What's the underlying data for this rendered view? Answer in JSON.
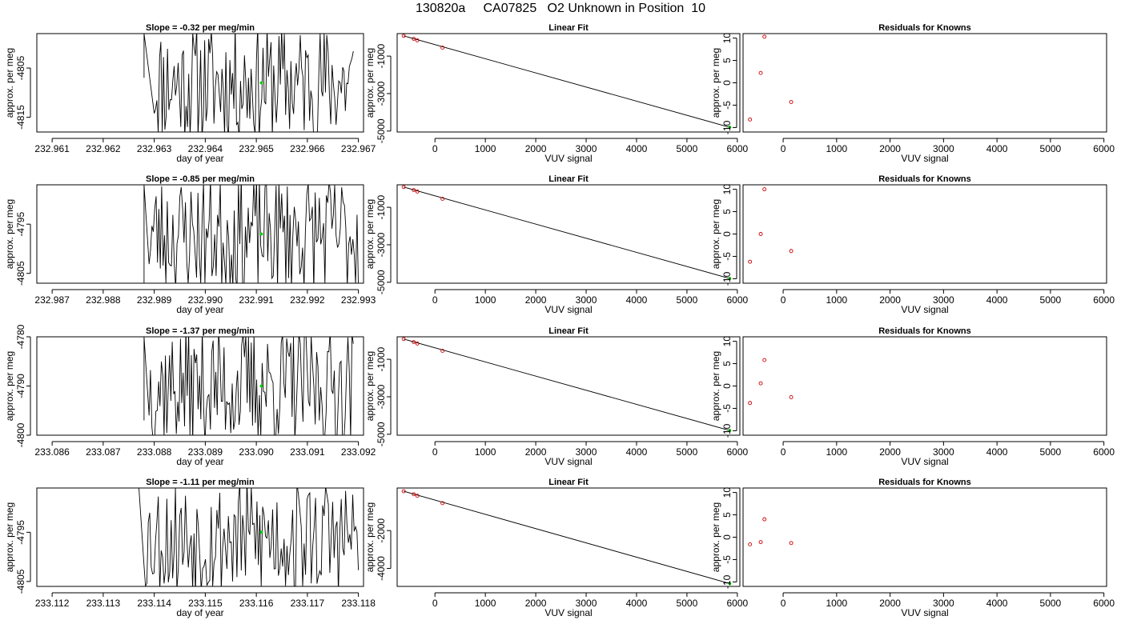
{
  "figure": {
    "title": "130820a     CA07825   O2 Unknown in Position  10",
    "colors": {
      "trace": "#000000",
      "unknown_point": "#00cc00",
      "known_point": "#cc0000",
      "fit_line": "#000000"
    }
  },
  "chart_data": [
    {
      "type": "line",
      "title": "Slope =  -0.32  per meg/min",
      "xlabel": "day of year",
      "ylabel": "approx. per meg",
      "xlim": [
        232.9607,
        232.9671
      ],
      "ylim": [
        -4818,
        -4798
      ],
      "xticks": [
        232.961,
        232.962,
        232.963,
        232.964,
        232.965,
        232.966,
        232.967
      ],
      "xtick_labels": [
        "232.961",
        "232.962",
        "232.963",
        "232.964",
        "232.965",
        "232.966",
        "232.967"
      ],
      "yticks": [
        -4805,
        -4815
      ],
      "ytick_labels": [
        "-4805",
        "-4815"
      ],
      "trace": {
        "x_start": 232.9628,
        "x_end": 232.9669,
        "x_entry": 232.963,
        "n": 150,
        "entry_y": -4807,
        "y_lo": -4818,
        "y_hi": -4798,
        "seed": 11
      },
      "unknown_point": {
        "x": 232.9651,
        "y": -4808
      }
    },
    {
      "type": "scatter",
      "title": "Linear Fit",
      "xlabel": "VUV signal",
      "ylabel": "approx. per meg",
      "xlim": [
        -750,
        6050
      ],
      "ylim": [
        -5050,
        200
      ],
      "xticks": [
        0,
        1000,
        2000,
        3000,
        4000,
        5000,
        6000
      ],
      "xtick_labels": [
        "0",
        "1000",
        "2000",
        "3000",
        "4000",
        "5000",
        "6000"
      ],
      "yticks": [
        -1000,
        -3000,
        -5000
      ],
      "ytick_labels": [
        "-1000",
        "-3000",
        "-5000"
      ],
      "known_points": [
        {
          "x": -620,
          "y": 80
        },
        {
          "x": -420,
          "y": -80
        },
        {
          "x": -350,
          "y": -160
        },
        {
          "x": 150,
          "y": -550
        }
      ],
      "fit_line": [
        {
          "x": -620,
          "y": 80
        },
        {
          "x": 5850,
          "y": -4800
        }
      ],
      "unknown_point": {
        "x": 5850,
        "y": -4800
      }
    },
    {
      "type": "scatter",
      "title": "Residuals for Knowns",
      "xlabel": "VUV signal",
      "ylabel": "approx. per meg",
      "xlim": [
        -750,
        6050
      ],
      "ylim": [
        -11,
        11
      ],
      "xticks": [
        0,
        1000,
        2000,
        3000,
        4000,
        5000,
        6000
      ],
      "xtick_labels": [
        "0",
        "1000",
        "2000",
        "3000",
        "4000",
        "5000",
        "6000"
      ],
      "yticks": [
        10,
        5,
        0,
        -5,
        -10
      ],
      "ytick_labels": [
        "10",
        "5",
        "0",
        "-5",
        "-10"
      ],
      "known_points": [
        {
          "x": -620,
          "y": -8.2
        },
        {
          "x": -420,
          "y": 2.2
        },
        {
          "x": -350,
          "y": 10.3
        },
        {
          "x": 150,
          "y": -4.3
        }
      ]
    },
    {
      "type": "line",
      "title": "Slope =  -0.85  per meg/min",
      "xlabel": "day of year",
      "ylabel": "approx. per meg",
      "xlim": [
        232.9867,
        232.9931
      ],
      "ylim": [
        -4807,
        -4787
      ],
      "xticks": [
        232.987,
        232.988,
        232.989,
        232.99,
        232.991,
        232.992,
        232.993
      ],
      "xtick_labels": [
        "232.987",
        "232.988",
        "232.989",
        "232.990",
        "232.991",
        "232.992",
        "232.993"
      ],
      "yticks": [
        -4795,
        -4805
      ],
      "ytick_labels": [
        "-4795",
        "-4805"
      ],
      "trace": {
        "x_start": 232.9888,
        "x_end": 232.993,
        "x_entry": 232.9889,
        "n": 150,
        "entry_y": -4807,
        "y_lo": -4807,
        "y_hi": -4787,
        "seed": 23
      },
      "unknown_point": {
        "x": 232.9911,
        "y": -4797
      }
    },
    {
      "type": "scatter",
      "title": "Linear Fit",
      "xlabel": "VUV signal",
      "ylabel": "approx. per meg",
      "xlim": [
        -750,
        6050
      ],
      "ylim": [
        -5050,
        200
      ],
      "xticks": [
        0,
        1000,
        2000,
        3000,
        4000,
        5000,
        6000
      ],
      "xtick_labels": [
        "0",
        "1000",
        "2000",
        "3000",
        "4000",
        "5000",
        "6000"
      ],
      "yticks": [
        -1000,
        -3000,
        -5000
      ],
      "ytick_labels": [
        "-1000",
        "-3000",
        "-5000"
      ],
      "known_points": [
        {
          "x": -620,
          "y": 80
        },
        {
          "x": -420,
          "y": -80
        },
        {
          "x": -350,
          "y": -160
        },
        {
          "x": 150,
          "y": -550
        }
      ],
      "fit_line": [
        {
          "x": -620,
          "y": 80
        },
        {
          "x": 5850,
          "y": -4800
        }
      ],
      "unknown_point": {
        "x": 5850,
        "y": -4800
      }
    },
    {
      "type": "scatter",
      "title": "Residuals for Knowns",
      "xlabel": "VUV signal",
      "ylabel": "approx. per meg",
      "xlim": [
        -750,
        6050
      ],
      "ylim": [
        -11,
        11
      ],
      "xticks": [
        0,
        1000,
        2000,
        3000,
        4000,
        5000,
        6000
      ],
      "xtick_labels": [
        "0",
        "1000",
        "2000",
        "3000",
        "4000",
        "5000",
        "6000"
      ],
      "yticks": [
        10,
        5,
        0,
        -5,
        -10
      ],
      "ytick_labels": [
        "10",
        "5",
        "0",
        "-5",
        "-10"
      ],
      "known_points": [
        {
          "x": -620,
          "y": -6.2
        },
        {
          "x": -420,
          "y": 0
        },
        {
          "x": -350,
          "y": 10
        },
        {
          "x": 150,
          "y": -3.8
        }
      ]
    },
    {
      "type": "line",
      "title": "Slope =  -1.37  per meg/min",
      "xlabel": "day of year",
      "ylabel": "approx. per meg",
      "xlim": [
        233.0857,
        233.0921
      ],
      "ylim": [
        -4800,
        -4780
      ],
      "xticks": [
        233.086,
        233.087,
        233.088,
        233.089,
        233.09,
        233.091,
        233.092
      ],
      "xtick_labels": [
        "233.086",
        "233.087",
        "233.088",
        "233.089",
        "233.090",
        "233.091",
        "233.092"
      ],
      "yticks": [
        -4780,
        -4790,
        -4800
      ],
      "ytick_labels": [
        "-4780",
        "-4790",
        "-4800"
      ],
      "trace": {
        "x_start": 233.0878,
        "x_end": 233.0919,
        "x_entry": 233.0879,
        "n": 150,
        "entry_y": -4797,
        "y_lo": -4800,
        "y_hi": -4780,
        "seed": 37
      },
      "unknown_point": {
        "x": 233.0901,
        "y": -4790
      }
    },
    {
      "type": "scatter",
      "title": "Linear Fit",
      "xlabel": "VUV signal",
      "ylabel": "approx. per meg",
      "xlim": [
        -750,
        6050
      ],
      "ylim": [
        -5050,
        200
      ],
      "xticks": [
        0,
        1000,
        2000,
        3000,
        4000,
        5000,
        6000
      ],
      "xtick_labels": [
        "0",
        "1000",
        "2000",
        "3000",
        "4000",
        "5000",
        "6000"
      ],
      "yticks": [
        -1000,
        -3000,
        -5000
      ],
      "ytick_labels": [
        "-1000",
        "-3000",
        "-5000"
      ],
      "known_points": [
        {
          "x": -620,
          "y": 80
        },
        {
          "x": -420,
          "y": -80
        },
        {
          "x": -350,
          "y": -160
        },
        {
          "x": 150,
          "y": -550
        }
      ],
      "fit_line": [
        {
          "x": -620,
          "y": 80
        },
        {
          "x": 5850,
          "y": -4800
        }
      ],
      "unknown_point": {
        "x": 5850,
        "y": -4800
      }
    },
    {
      "type": "scatter",
      "title": "Residuals for Knowns",
      "xlabel": "VUV signal",
      "ylabel": "approx. per meg",
      "xlim": [
        -750,
        6050
      ],
      "ylim": [
        -11,
        11
      ],
      "xticks": [
        0,
        1000,
        2000,
        3000,
        4000,
        5000,
        6000
      ],
      "xtick_labels": [
        "0",
        "1000",
        "2000",
        "3000",
        "4000",
        "5000",
        "6000"
      ],
      "yticks": [
        10,
        5,
        0,
        -5,
        -10
      ],
      "ytick_labels": [
        "10",
        "5",
        "0",
        "-5",
        "-10"
      ],
      "known_points": [
        {
          "x": -620,
          "y": -3.8
        },
        {
          "x": -420,
          "y": 0.6
        },
        {
          "x": -350,
          "y": 5.8
        },
        {
          "x": 150,
          "y": -2.5
        }
      ]
    },
    {
      "type": "line",
      "title": "Slope =  -1.11  per meg/min",
      "xlabel": "day of year",
      "ylabel": "approx. per meg",
      "xlim": [
        233.1117,
        233.1181
      ],
      "ylim": [
        -4806,
        -4786
      ],
      "xticks": [
        233.112,
        233.113,
        233.114,
        233.115,
        233.116,
        233.117,
        233.118
      ],
      "xtick_labels": [
        "233.112",
        "233.113",
        "233.114",
        "233.115",
        "233.116",
        "233.117",
        "233.118"
      ],
      "yticks": [
        -4795,
        -4805
      ],
      "ytick_labels": [
        "-4795",
        "-4805"
      ],
      "trace": {
        "x_start": 233.1137,
        "x_end": 233.118,
        "x_entry": 233.1138,
        "n": 150,
        "entry_y": -4786,
        "y_lo": -4806,
        "y_hi": -4786,
        "seed": 53
      },
      "unknown_point": {
        "x": 233.1161,
        "y": -4795
      }
    },
    {
      "type": "scatter",
      "title": "Linear Fit",
      "xlabel": "VUV signal",
      "ylabel": "approx. per meg",
      "xlim": [
        -750,
        6050
      ],
      "ylim": [
        -4950,
        250
      ],
      "xticks": [
        0,
        1000,
        2000,
        3000,
        4000,
        5000,
        6000
      ],
      "xtick_labels": [
        "0",
        "1000",
        "2000",
        "3000",
        "4000",
        "5000",
        "6000"
      ],
      "yticks": [
        -2000,
        -4000
      ],
      "ytick_labels": [
        "-2000",
        "-4000"
      ],
      "known_points": [
        {
          "x": -620,
          "y": 80
        },
        {
          "x": -420,
          "y": -80
        },
        {
          "x": -350,
          "y": -160
        },
        {
          "x": 150,
          "y": -550
        }
      ],
      "fit_line": [
        {
          "x": -620,
          "y": 80
        },
        {
          "x": 5850,
          "y": -4800
        }
      ],
      "unknown_point": {
        "x": 5850,
        "y": -4800
      }
    },
    {
      "type": "scatter",
      "title": "Residuals for Knowns",
      "xlabel": "VUV signal",
      "ylabel": "approx. per meg",
      "xlim": [
        -750,
        6050
      ],
      "ylim": [
        -11,
        11
      ],
      "xticks": [
        0,
        1000,
        2000,
        3000,
        4000,
        5000,
        6000
      ],
      "xtick_labels": [
        "0",
        "1000",
        "2000",
        "3000",
        "4000",
        "5000",
        "6000"
      ],
      "yticks": [
        10,
        5,
        0,
        -5,
        -10
      ],
      "ytick_labels": [
        "10",
        "5",
        "0",
        "-5",
        "-10"
      ],
      "known_points": [
        {
          "x": -620,
          "y": -1.6
        },
        {
          "x": -420,
          "y": -1.1
        },
        {
          "x": -350,
          "y": 4
        },
        {
          "x": 150,
          "y": -1.3
        }
      ]
    }
  ]
}
